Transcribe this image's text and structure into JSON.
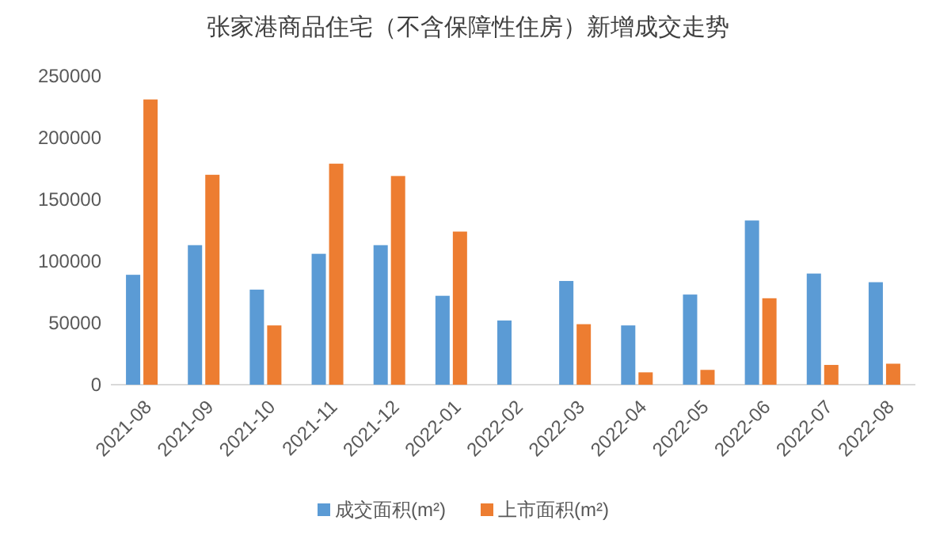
{
  "chart_data": {
    "type": "bar",
    "title": "张家港商品住宅（不含保障性住房）新增成交走势",
    "categories": [
      "2021-08",
      "2021-09",
      "2021-10",
      "2021-11",
      "2021-12",
      "2022-01",
      "2022-02",
      "2022-03",
      "2022-04",
      "2022-05",
      "2022-06",
      "2022-07",
      "2022-08"
    ],
    "series": [
      {
        "name": "成交面积(m²)",
        "color": "#5b9bd5",
        "values": [
          89000,
          113000,
          77000,
          106000,
          113000,
          72000,
          52000,
          84000,
          48000,
          73000,
          133000,
          90000,
          83000
        ]
      },
      {
        "name": "上市面积(m²)",
        "color": "#ed7d31",
        "values": [
          231000,
          170000,
          48000,
          179000,
          169000,
          124000,
          null,
          49000,
          10000,
          12000,
          70000,
          16000,
          17000
        ]
      }
    ],
    "ylim": [
      0,
      250000
    ],
    "yticks": [
      0,
      50000,
      100000,
      150000,
      200000,
      250000
    ],
    "grid": false,
    "legend": "bottom"
  }
}
